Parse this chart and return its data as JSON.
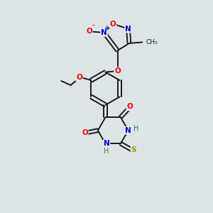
{
  "bg_color": "#dde4e8",
  "bond_color": "#1a1a1a",
  "atom_colors": {
    "O": "#ff0000",
    "N": "#0000cc",
    "S": "#999900",
    "H": "#228855",
    "C": "#1a1a1a"
  },
  "fig_width": 3.0,
  "fig_height": 3.0,
  "dpi": 100
}
